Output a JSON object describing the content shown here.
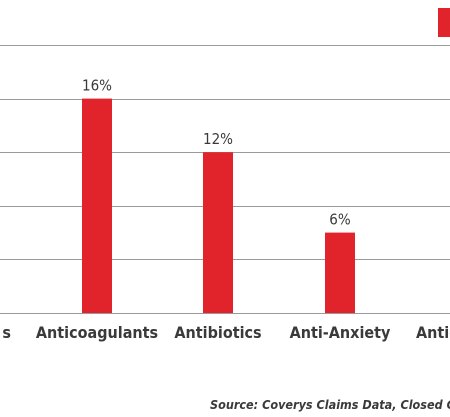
{
  "chart_data": {
    "type": "bar",
    "categories": [
      "…s",
      "Anticoagulants",
      "Antibiotics",
      "Anti-Anxiety",
      "Antic…"
    ],
    "values": [
      null,
      16,
      12,
      6,
      null
    ],
    "value_labels": [
      "",
      "16%",
      "12%",
      "6%",
      ""
    ],
    "ylim": [
      0,
      20
    ],
    "y_gridlines": [
      4,
      8,
      12,
      16,
      20
    ],
    "grid": true,
    "colors": {
      "bar": "#e1242b",
      "grid": "#9a9a9a",
      "text": "#3a3a3a"
    },
    "legend": {
      "position": "top-right"
    }
  },
  "source": "Source: Coverys Claims Data, Closed Cl"
}
